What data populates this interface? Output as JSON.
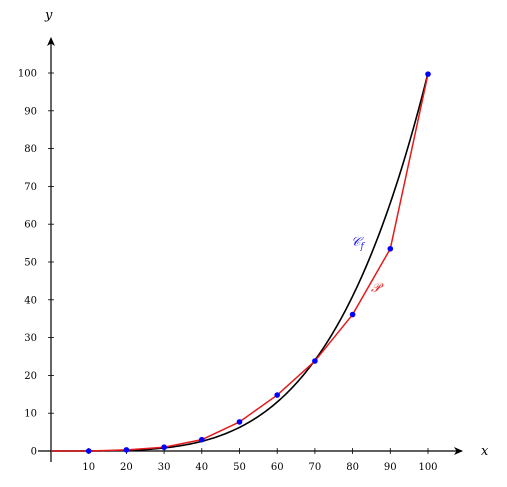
{
  "chart_data": {
    "type": "line",
    "xlabel": "x",
    "ylabel": "y",
    "xlim": [
      0,
      110
    ],
    "ylim": [
      0,
      110
    ],
    "x_ticks": [
      10,
      20,
      30,
      40,
      50,
      60,
      70,
      80,
      90,
      100
    ],
    "y_ticks": [
      0,
      10,
      20,
      30,
      40,
      50,
      60,
      70,
      80,
      90,
      100
    ],
    "grid": false,
    "series": [
      {
        "name": "𝒞f",
        "kind": "curve",
        "color": "#000000",
        "function": "y = x^4 / 1000000",
        "domain": [
          0,
          100
        ]
      },
      {
        "name": "𝒫",
        "kind": "polyline",
        "color": "#e41a1c",
        "points": [
          [
            0,
            0
          ],
          [
            10,
            0
          ],
          [
            20,
            0.3
          ],
          [
            30,
            1
          ],
          [
            40,
            3
          ],
          [
            50,
            7.7
          ],
          [
            60,
            14.8
          ],
          [
            70,
            23.8
          ],
          [
            80,
            36.1
          ],
          [
            90,
            53.5
          ],
          [
            100,
            99.7
          ]
        ]
      }
    ],
    "points": {
      "color": "#0000ff",
      "values": [
        [
          10,
          0
        ],
        [
          20,
          0.3
        ],
        [
          30,
          1
        ],
        [
          40,
          3
        ],
        [
          50,
          7.7
        ],
        [
          60,
          14.8
        ],
        [
          70,
          23.8
        ],
        [
          80,
          36.1
        ],
        [
          90,
          53.5
        ],
        [
          100,
          99.7
        ]
      ]
    },
    "labels": {
      "curve": "𝒞",
      "curve_sub": "f",
      "polyline": "𝒫",
      "curve_color": "#1a1aff",
      "polyline_color": "#e41a1c"
    }
  }
}
